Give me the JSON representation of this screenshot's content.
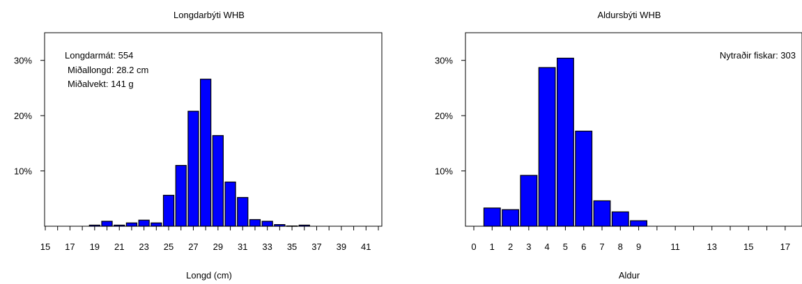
{
  "colors": {
    "bar_fill": "#0000ff",
    "bar_stroke": "#000000",
    "axis": "#000000",
    "background": "#ffffff"
  },
  "chart_data": [
    {
      "type": "bar",
      "title": "Longdarbýti WHB",
      "xlabel": "Longd (cm)",
      "ylabel": "",
      "x_range": [
        15,
        42
      ],
      "ylim": [
        0,
        35
      ],
      "y_ticks": [
        10,
        20,
        30
      ],
      "y_tick_labels": [
        "10%",
        "20%",
        "30%"
      ],
      "x_ticks": [
        15,
        16,
        17,
        18,
        19,
        20,
        21,
        22,
        23,
        24,
        25,
        26,
        27,
        28,
        29,
        30,
        31,
        32,
        33,
        34,
        35,
        36,
        37,
        38,
        39,
        40,
        41,
        42
      ],
      "x_tick_labels": [
        15,
        17,
        19,
        21,
        23,
        25,
        27,
        29,
        31,
        33,
        35,
        37,
        39,
        41
      ],
      "bar_width": 0.85,
      "categories": [
        19,
        20,
        21,
        22,
        23,
        24,
        25,
        26,
        27,
        28,
        29,
        30,
        31,
        32,
        33,
        34,
        35,
        36
      ],
      "values": [
        0.2,
        0.9,
        0.2,
        0.6,
        1.1,
        0.6,
        5.6,
        11.0,
        20.8,
        26.6,
        16.4,
        8.0,
        5.2,
        1.2,
        0.9,
        0.3,
        0.05,
        0.2
      ],
      "annotations": [
        "Longdarmát: 554",
        "Miðallongd: 28.2 cm",
        "Miðalvekt: 141 g"
      ],
      "grid": false,
      "legend": "none"
    },
    {
      "type": "bar",
      "title": "Aldursbýti WHB",
      "xlabel": "Aldur",
      "ylabel": "",
      "x_range": [
        0,
        17.5
      ],
      "ylim": [
        0,
        35
      ],
      "y_ticks": [
        10,
        20,
        30
      ],
      "y_tick_labels": [
        "10%",
        "20%",
        "30%"
      ],
      "x_ticks": [
        0,
        1,
        2,
        3,
        4,
        5,
        6,
        7,
        8,
        9,
        10,
        11,
        12,
        13,
        14,
        15,
        16,
        17
      ],
      "x_tick_labels": [
        0,
        1,
        2,
        3,
        4,
        5,
        6,
        7,
        8,
        9,
        11,
        13,
        15,
        17
      ],
      "bar_width": 0.9,
      "categories": [
        1,
        2,
        3,
        4,
        5,
        6,
        7,
        8,
        9
      ],
      "values": [
        3.3,
        3.0,
        9.2,
        28.7,
        30.4,
        17.2,
        4.6,
        2.6,
        1.0
      ],
      "annotations": [
        "Nytraðir fiskar: 303"
      ],
      "grid": false,
      "legend": "none"
    }
  ]
}
